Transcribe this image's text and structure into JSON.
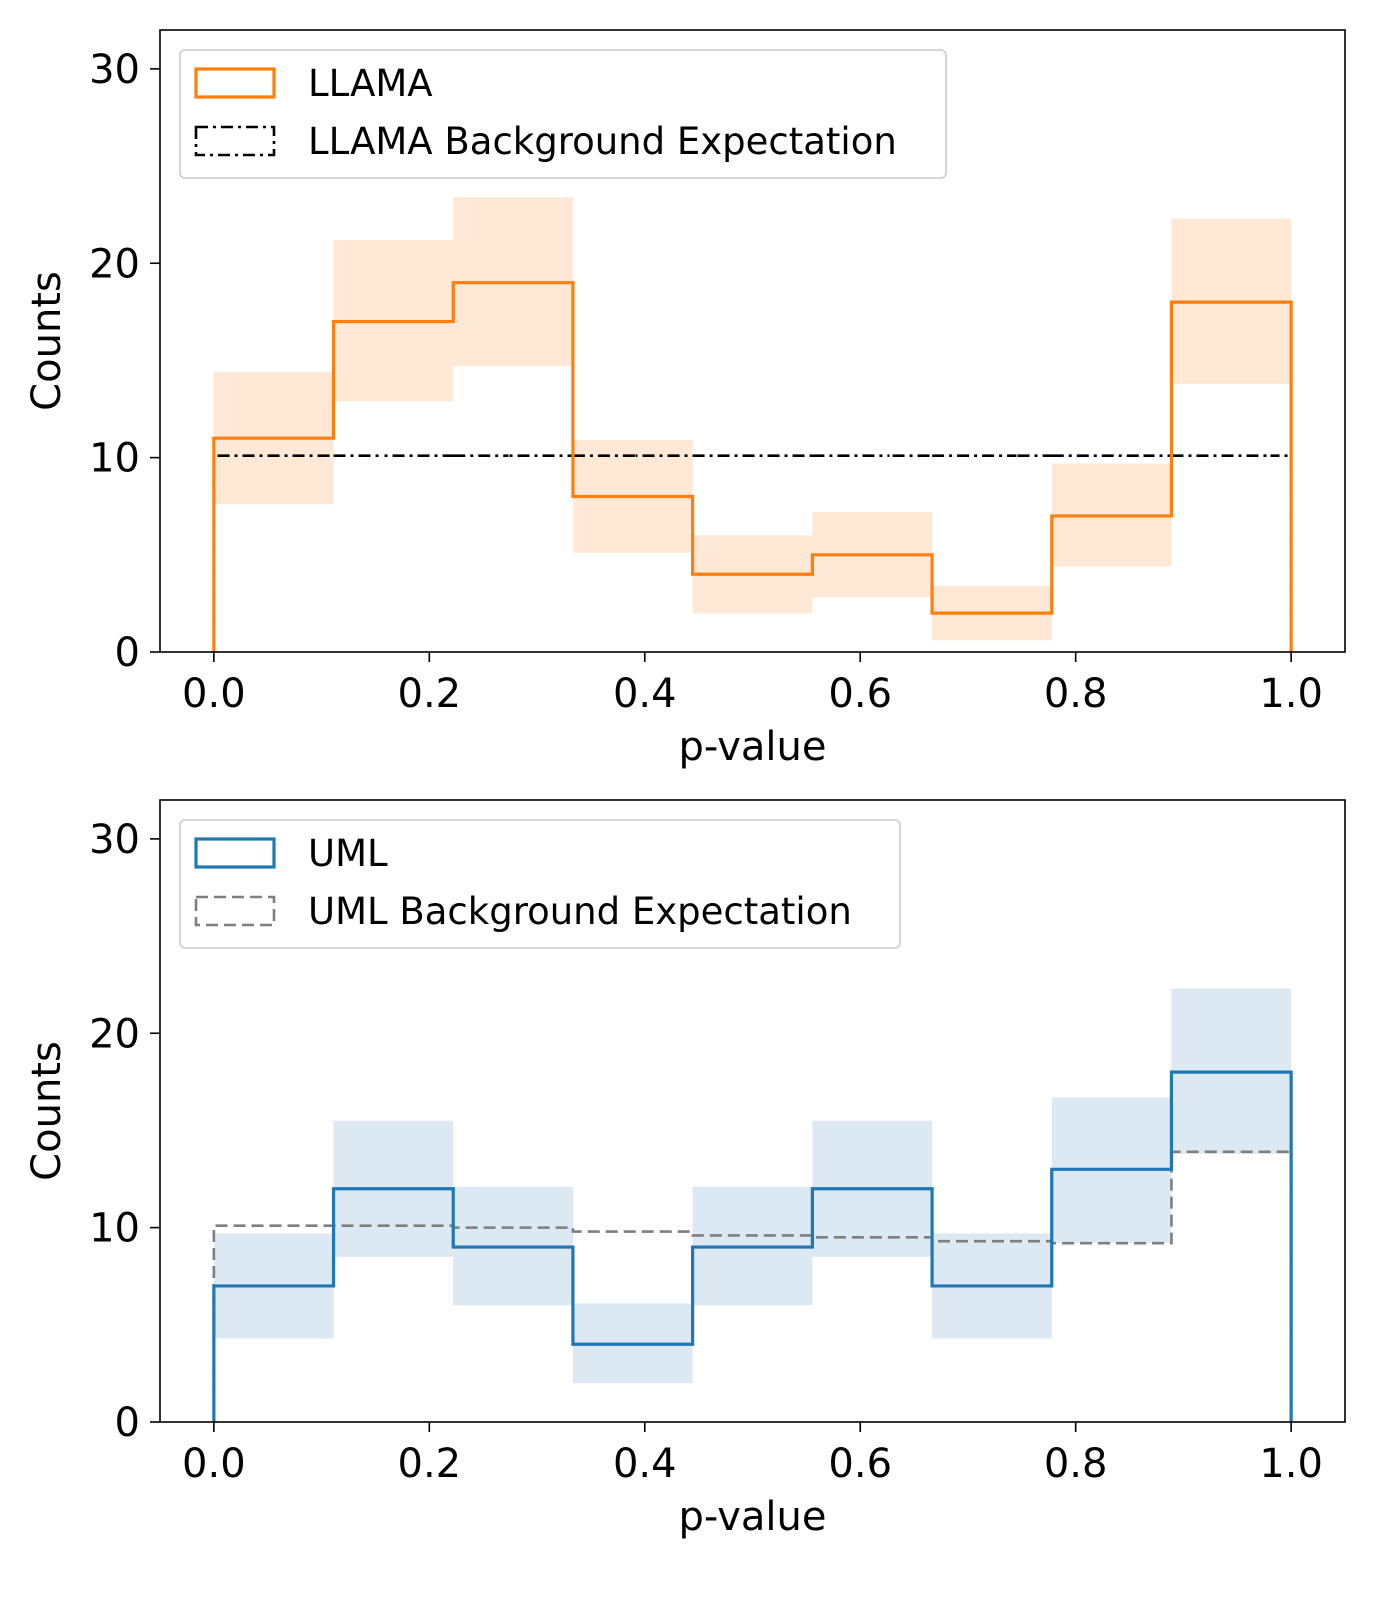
{
  "chart_data": [
    {
      "type": "histogram",
      "bin_edges": [
        0.0,
        0.1111,
        0.2222,
        0.3333,
        0.4444,
        0.5556,
        0.6667,
        0.7778,
        0.8889,
        1.0
      ],
      "xlabel": "p-value",
      "ylabel": "Counts",
      "xlim": [
        -0.05,
        1.05
      ],
      "ylim": [
        0,
        32
      ],
      "xticks": [
        "0.0",
        "0.2",
        "0.4",
        "0.6",
        "0.8",
        "1.0"
      ],
      "xtick_values": [
        0.0,
        0.2,
        0.4,
        0.6,
        0.8,
        1.0
      ],
      "yticks": [
        "0",
        "10",
        "20",
        "30"
      ],
      "ytick_values": [
        0,
        10,
        20,
        30
      ],
      "grid": false,
      "legend_position": "top-left",
      "series": [
        {
          "name": "LLAMA",
          "kind": "step",
          "color": "#ff7f0e",
          "band_color": "#ffe8d6",
          "values": [
            11,
            17,
            19,
            8,
            4,
            5,
            2,
            7,
            18
          ],
          "band_low": [
            7.6,
            12.9,
            14.7,
            5.1,
            2.0,
            2.8,
            0.6,
            4.4,
            13.8
          ],
          "band_high": [
            14.4,
            21.2,
            23.4,
            10.9,
            6.0,
            7.2,
            3.4,
            9.7,
            22.3
          ]
        },
        {
          "name": "LLAMA Background Expectation",
          "kind": "dashdot",
          "color": "#000000",
          "values": [
            10.1,
            10.1,
            10.1,
            10.1,
            10.1,
            10.1,
            10.1,
            10.1,
            10.1
          ]
        }
      ]
    },
    {
      "type": "histogram",
      "bin_edges": [
        0.0,
        0.1111,
        0.2222,
        0.3333,
        0.4444,
        0.5556,
        0.6667,
        0.7778,
        0.8889,
        1.0
      ],
      "xlabel": "p-value",
      "ylabel": "Counts",
      "xlim": [
        -0.05,
        1.05
      ],
      "ylim": [
        0,
        32
      ],
      "xticks": [
        "0.0",
        "0.2",
        "0.4",
        "0.6",
        "0.8",
        "1.0"
      ],
      "xtick_values": [
        0.0,
        0.2,
        0.4,
        0.6,
        0.8,
        1.0
      ],
      "yticks": [
        "0",
        "10",
        "20",
        "30"
      ],
      "ytick_values": [
        0,
        10,
        20,
        30
      ],
      "grid": false,
      "legend_position": "top-left",
      "series": [
        {
          "name": "UML",
          "kind": "step",
          "color": "#1f77b4",
          "band_color": "#dce8f2",
          "values": [
            7,
            12,
            9,
            4,
            9,
            12,
            7,
            13,
            18
          ],
          "band_low": [
            4.3,
            8.5,
            6.0,
            2.0,
            6.0,
            8.5,
            4.3,
            9.2,
            13.8
          ],
          "band_high": [
            9.7,
            15.5,
            12.1,
            6.1,
            12.1,
            15.5,
            9.7,
            16.7,
            22.3
          ]
        },
        {
          "name": "UML Background Expectation",
          "kind": "dashed",
          "color": "#7f7f7f",
          "values": [
            10.1,
            10.1,
            10.0,
            9.8,
            9.6,
            9.5,
            9.3,
            9.2,
            13.9
          ]
        }
      ]
    }
  ]
}
